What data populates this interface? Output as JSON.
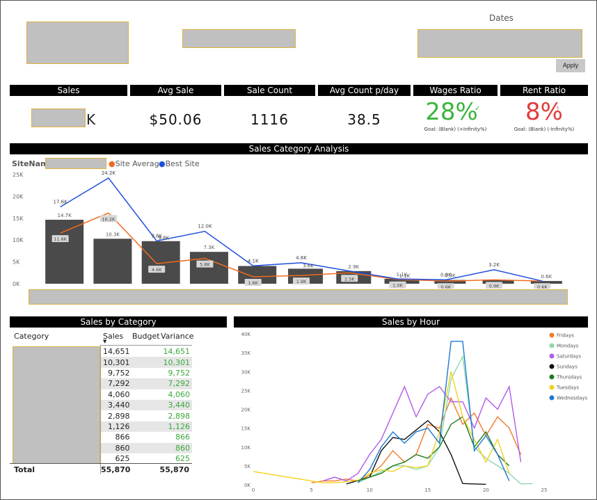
{
  "filters": {
    "dates_title": "Dates",
    "apply_label": "Apply"
  },
  "kpis": {
    "sales": {
      "label": "Sales",
      "suffix": "K"
    },
    "avg_sale": {
      "label": "Avg Sale",
      "value": "$50.06"
    },
    "sale_count": {
      "label": "Sale Count",
      "value": "1116"
    },
    "avg_count": {
      "label": "Avg Count p/day",
      "value": "38.5"
    },
    "wages": {
      "label": "Wages Ratio",
      "value": "28%",
      "goal": "Goal: (Blank) (+Infinity%)",
      "color": "#3cb43c"
    },
    "rent": {
      "label": "Rent Ratio",
      "value": "8%",
      "goal": "Goal: (Blank) (-Infinity%)",
      "color": "#e03c3c"
    }
  },
  "category_analysis": {
    "title": "Sales Category Analysis",
    "legend": {
      "site_label": "SiteName",
      "site_average": "Site Average",
      "best_site": "Best Site"
    },
    "colors": {
      "bars": "#4a4a4a",
      "site_average": "#f06a1e",
      "best_site": "#1f4fe0"
    }
  },
  "sales_by_category": {
    "title": "Sales by Category",
    "headers": {
      "category": "Category",
      "sales": "Sales",
      "budget": "Budget",
      "variance": "Variance"
    },
    "rows": [
      {
        "sales": "14,651",
        "variance": "14,651"
      },
      {
        "sales": "10,301",
        "variance": "10,301"
      },
      {
        "sales": "9,752",
        "variance": "9,752"
      },
      {
        "sales": "7,292",
        "variance": "7,292"
      },
      {
        "sales": "4,060",
        "variance": "4,060"
      },
      {
        "sales": "3,440",
        "variance": "3,440"
      },
      {
        "sales": "2,898",
        "variance": "2,898"
      },
      {
        "sales": "1,126",
        "variance": "1,126"
      },
      {
        "sales": "866",
        "variance": "866"
      },
      {
        "sales": "860",
        "variance": "860"
      },
      {
        "sales": "625",
        "variance": "625"
      }
    ],
    "total": {
      "label": "Total",
      "sales": "55,870",
      "variance": "55,870"
    }
  },
  "sales_by_hour_title": "Sales by Hour",
  "chart_data": [
    {
      "type": "bar",
      "title": "Sales Category Analysis",
      "ylim": [
        0,
        25000
      ],
      "yticks": [
        "0K",
        "5K",
        "10K",
        "15K",
        "20K",
        "25K"
      ],
      "bar_labels": [
        "14.7K",
        "10.3K",
        "",
        "7.3K",
        "",
        "",
        "2.9K",
        "1.1K",
        "0.9K",
        "",
        "0.6K"
      ],
      "series": [
        {
          "name": "SiteName",
          "values": [
            14651,
            10301,
            9752,
            7292,
            4060,
            3440,
            2898,
            1126,
            866,
            860,
            625
          ]
        },
        {
          "name": "Site Average",
          "values": [
            11600,
            16200,
            4600,
            5800,
            1600,
            1900,
            2500,
            1000,
            600,
            900,
            600
          ],
          "labels": [
            "11.6K",
            "16.2K",
            "4.6K",
            "5.8K",
            "1.6K",
            "1.9K",
            "2.5K",
            "1.0K",
            "0.6K",
            "0.9K",
            "0.6K"
          ]
        },
        {
          "name": "Best Site",
          "values": [
            17600,
            24200,
            9800,
            12000,
            4100,
            4800,
            2900,
            1100,
            900,
            3200,
            600
          ],
          "labels": [
            "17.6K",
            "24.2K",
            "9.8K",
            "12.0K",
            "4.1K",
            "4.8K",
            "",
            "",
            "0.9K",
            "3.2K",
            ""
          ]
        }
      ],
      "extra_labels": [
        "9.8K",
        "3.6K",
        "1.1K"
      ]
    },
    {
      "type": "line",
      "title": "Sales by Hour",
      "xlim": [
        0,
        25
      ],
      "xticks": [
        0,
        5,
        10,
        15,
        20,
        25
      ],
      "ylim": [
        0,
        40000
      ],
      "yticks": [
        "0K",
        "5K",
        "10K",
        "15K",
        "20K",
        "25K",
        "30K",
        "35K",
        "40K"
      ],
      "legend_position": "right",
      "series": [
        {
          "name": "Fridays",
          "color": "#f07a2a",
          "points": [
            [
              5,
              500
            ],
            [
              6,
              1000
            ],
            [
              7,
              1000
            ],
            [
              8,
              1500
            ],
            [
              9,
              1000
            ],
            [
              10,
              2500
            ],
            [
              11,
              5000
            ],
            [
              12,
              9000
            ],
            [
              13,
              6000
            ],
            [
              14,
              8000
            ],
            [
              15,
              16000
            ],
            [
              16,
              15000
            ],
            [
              17,
              23000
            ],
            [
              18,
              16000
            ],
            [
              19,
              19000
            ],
            [
              20,
              13000
            ],
            [
              21,
              18000
            ],
            [
              22,
              15000
            ],
            [
              23,
              8000
            ]
          ]
        },
        {
          "name": "Mondays",
          "color": "#8fd8b0",
          "points": [
            [
              9,
              500
            ],
            [
              10,
              2000
            ],
            [
              11,
              3500
            ],
            [
              12,
              5000
            ],
            [
              13,
              5000
            ],
            [
              14,
              4000
            ],
            [
              15,
              5000
            ],
            [
              16,
              10000
            ],
            [
              17,
              28000
            ],
            [
              18,
              34000
            ],
            [
              19,
              10000
            ],
            [
              20,
              7000
            ],
            [
              21,
              5000
            ],
            [
              22,
              3000
            ],
            [
              23,
              200
            ],
            [
              24,
              300
            ]
          ]
        },
        {
          "name": "Saturdays",
          "color": "#b05ae8",
          "points": [
            [
              6,
              1000
            ],
            [
              7,
              2000
            ],
            [
              8,
              1000
            ],
            [
              9,
              3000
            ],
            [
              10,
              8000
            ],
            [
              11,
              12000
            ],
            [
              12,
              19000
            ],
            [
              13,
              26000
            ],
            [
              14,
              18000
            ],
            [
              15,
              24000
            ],
            [
              16,
              26000
            ],
            [
              17,
              22000
            ],
            [
              18,
              22000
            ],
            [
              19,
              15000
            ],
            [
              20,
              23000
            ],
            [
              21,
              20000
            ],
            [
              22,
              26000
            ],
            [
              23,
              6000
            ]
          ]
        },
        {
          "name": "Sundays",
          "color": "#111111",
          "points": [
            [
              8,
              200
            ],
            [
              10,
              2000
            ],
            [
              11,
              9000
            ],
            [
              12,
              12500
            ],
            [
              13,
              12000
            ],
            [
              14,
              14500
            ],
            [
              15,
              17000
            ],
            [
              16,
              14000
            ],
            [
              17,
              8000
            ],
            [
              18,
              300
            ],
            [
              19,
              200
            ],
            [
              20,
              100
            ]
          ]
        },
        {
          "name": "Thursdays",
          "color": "#1e7a1e",
          "points": [
            [
              9,
              1000
            ],
            [
              10,
              2000
            ],
            [
              11,
              3000
            ],
            [
              12,
              5000
            ],
            [
              13,
              6000
            ],
            [
              14,
              8000
            ],
            [
              15,
              7000
            ],
            [
              16,
              10000
            ],
            [
              17,
              16000
            ],
            [
              18,
              18000
            ],
            [
              19,
              10000
            ],
            [
              20,
              14000
            ],
            [
              21,
              8000
            ],
            [
              22,
              5000
            ]
          ]
        },
        {
          "name": "Tuesdays",
          "color": "#f0d21e",
          "points": [
            [
              0,
              3500
            ],
            [
              1,
              3000
            ],
            [
              2,
              2500
            ],
            [
              3,
              2000
            ],
            [
              4,
              1500
            ],
            [
              5,
              1000
            ],
            [
              6,
              500
            ],
            [
              7,
              500
            ],
            [
              8,
              800
            ],
            [
              9,
              1200
            ],
            [
              10,
              3000
            ],
            [
              11,
              4000
            ],
            [
              12,
              3500
            ],
            [
              13,
              5000
            ],
            [
              14,
              4500
            ],
            [
              15,
              5000
            ],
            [
              16,
              14000
            ],
            [
              17,
              30000
            ],
            [
              18,
              18000
            ],
            [
              19,
              12000
            ],
            [
              20,
              6000
            ],
            [
              21,
              12000
            ],
            [
              22,
              3000
            ]
          ]
        },
        {
          "name": "Wednesdays",
          "color": "#1e78d2",
          "points": [
            [
              9,
              500
            ],
            [
              10,
              4000
            ],
            [
              11,
              10000
            ],
            [
              12,
              14000
            ],
            [
              13,
              11000
            ],
            [
              14,
              14000
            ],
            [
              15,
              15000
            ],
            [
              16,
              11000
            ],
            [
              17,
              38000
            ],
            [
              18,
              38000
            ],
            [
              19,
              9000
            ],
            [
              20,
              13000
            ],
            [
              21,
              8000
            ],
            [
              22,
              1000
            ]
          ]
        }
      ]
    }
  ]
}
